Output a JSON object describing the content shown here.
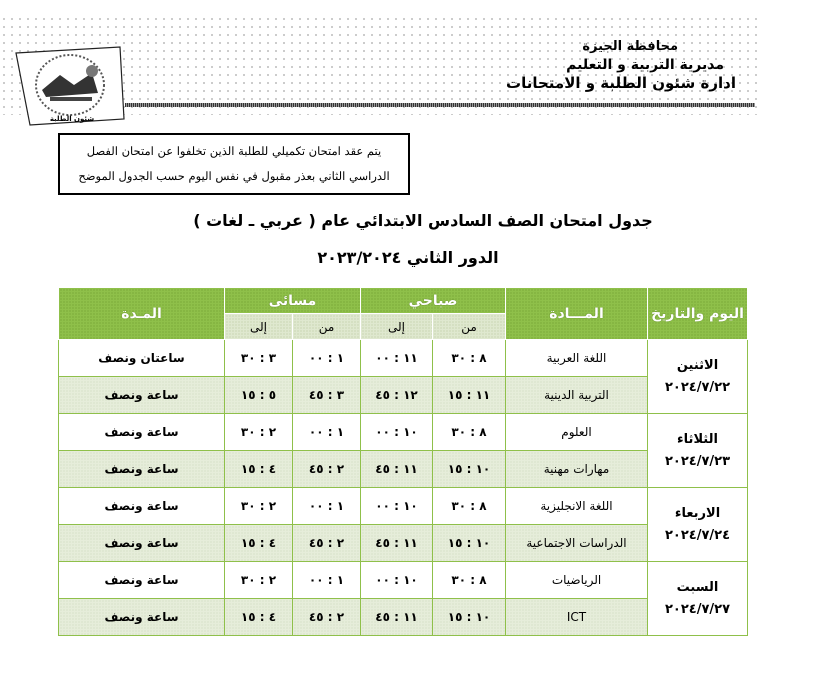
{
  "header": {
    "lines": [
      "محافظة الجيزة",
      "مديرية التربية و التعليم",
      "ادارة شئون الطلبة و الامتحانات"
    ],
    "logo_text": "شئون الطلبة"
  },
  "note": {
    "line1": "يتم عقد امتحان تكميلي للطلبة الذين تخلفوا عن امتحان الفصل",
    "line2": "الدراسي الثاني بعذر مقبول في نفس اليوم حسب الجدول الموضح"
  },
  "title": "جدول امتحان الصف السادس الابتدائي عام ( عربي ـ لغات )",
  "subtitle": "الدور الثاني ٢٠٢٣/٢٠٢٤",
  "table": {
    "headers": {
      "day": "اليوم والتاريخ",
      "subject": "المـــادة",
      "morning": "صباحي",
      "evening": "مسائى",
      "duration": "المـدة",
      "from": "من",
      "to": "إلى"
    },
    "days": [
      {
        "day": "الاثنين",
        "date": "٢٠٢٤/٧/٢٢",
        "rows": [
          {
            "subject": "اللغة العربية",
            "m_from": "٨ : ٣٠",
            "m_to": "١١ : ٠٠",
            "e_from": "١ : ٠٠",
            "e_to": "٣ : ٣٠",
            "duration": "ساعتان ونصف"
          },
          {
            "subject": "التربية الدينية",
            "m_from": "١١ : ١٥",
            "m_to": "١٢ : ٤٥",
            "e_from": "٣ : ٤٥",
            "e_to": "٥ : ١٥",
            "duration": "ساعة ونصف"
          }
        ]
      },
      {
        "day": "الثلاثاء",
        "date": "٢٠٢٤/٧/٢٣",
        "rows": [
          {
            "subject": "العلوم",
            "m_from": "٨ : ٣٠",
            "m_to": "١٠ : ٠٠",
            "e_from": "١ : ٠٠",
            "e_to": "٢ : ٣٠",
            "duration": "ساعة ونصف"
          },
          {
            "subject": "مهارات مهنية",
            "m_from": "١٠ : ١٥",
            "m_to": "١١ : ٤٥",
            "e_from": "٢ : ٤٥",
            "e_to": "٤ : ١٥",
            "duration": "ساعة ونصف"
          }
        ]
      },
      {
        "day": "الاربعاء",
        "date": "٢٠٢٤/٧/٢٤",
        "rows": [
          {
            "subject": "اللغة الانجليزية",
            "m_from": "٨ : ٣٠",
            "m_to": "١٠ : ٠٠",
            "e_from": "١ : ٠٠",
            "e_to": "٢ : ٣٠",
            "duration": "ساعة ونصف"
          },
          {
            "subject": "الدراسات الاجتماعية",
            "m_from": "١٠ : ١٥",
            "m_to": "١١ : ٤٥",
            "e_from": "٢ : ٤٥",
            "e_to": "٤ : ١٥",
            "duration": "ساعة ونصف"
          }
        ]
      },
      {
        "day": "السبت",
        "date": "٢٠٢٤/٧/٢٧",
        "rows": [
          {
            "subject": "الرياضيات",
            "m_from": "٨ : ٣٠",
            "m_to": "١٠ : ٠٠",
            "e_from": "١ : ٠٠",
            "e_to": "٢ : ٣٠",
            "duration": "ساعة ونصف"
          },
          {
            "subject": "ICT",
            "m_from": "١٠ : ١٥",
            "m_to": "١١ : ٤٥",
            "e_from": "٢ : ٤٥",
            "e_to": "٤ : ١٥",
            "duration": "ساعة ونصف"
          }
        ]
      }
    ]
  },
  "colors": {
    "header_green": "#8fc04a",
    "row_alt": "#e6edda"
  }
}
